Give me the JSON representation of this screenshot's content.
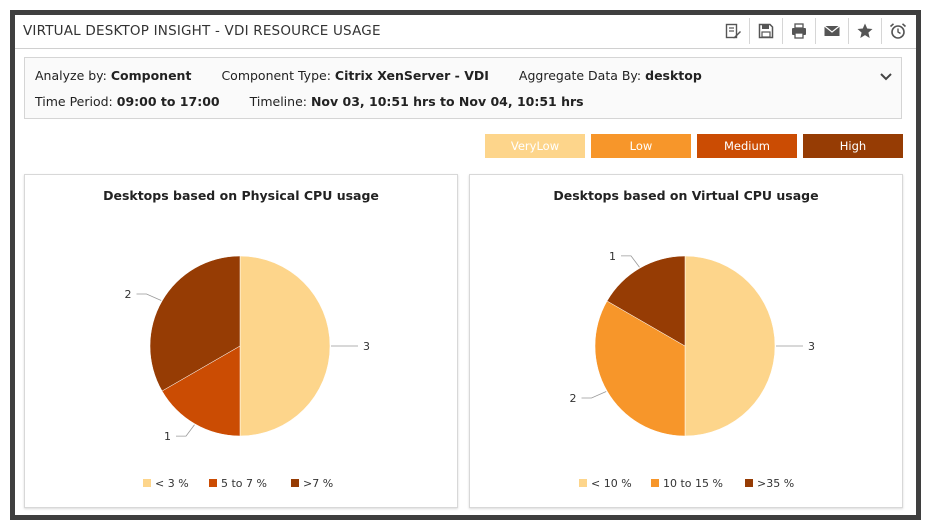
{
  "header": {
    "title": "VIRTUAL DESKTOP INSIGHT - VDI RESOURCE USAGE",
    "toolbar_icons": [
      "edit-report-icon",
      "save-icon",
      "print-icon",
      "mail-icon",
      "star-icon",
      "alarm-clock-icon"
    ]
  },
  "filters": {
    "analyze_label": "Analyze by:",
    "analyze_value": "Component",
    "component_type_label": "Component Type:",
    "component_type_value": "Citrix XenServer - VDI",
    "aggregate_label": "Aggregate Data By:",
    "aggregate_value": "desktop",
    "time_period_label": "Time Period:",
    "time_period_value": "09:00 to 17:00",
    "timeline_label": "Timeline:",
    "timeline_value": "Nov 03, 10:51 hrs to Nov 04, 10:51 hrs"
  },
  "levels": [
    {
      "label": "VeryLow",
      "color": "#fdd58b"
    },
    {
      "label": "Low",
      "color": "#f7962a"
    },
    {
      "label": "Medium",
      "color": "#cb4c03"
    },
    {
      "label": "High",
      "color": "#963c04"
    }
  ],
  "chart_data": [
    {
      "type": "pie",
      "title": "Desktops based on Physical CPU usage",
      "slices": [
        {
          "label": "< 3 %",
          "value": 3,
          "color": "#fdd58b"
        },
        {
          "label": "5 to 7 %",
          "value": 1,
          "color": "#cb4c03"
        },
        {
          "label": ">7 %",
          "value": 2,
          "color": "#963c04"
        }
      ]
    },
    {
      "type": "pie",
      "title": "Desktops based on Virtual CPU usage",
      "slices": [
        {
          "label": "< 10 %",
          "value": 3,
          "color": "#fdd58b"
        },
        {
          "label": "10 to 15 %",
          "value": 2,
          "color": "#f7962a"
        },
        {
          "label": ">35 %",
          "value": 1,
          "color": "#963c04"
        }
      ]
    }
  ]
}
